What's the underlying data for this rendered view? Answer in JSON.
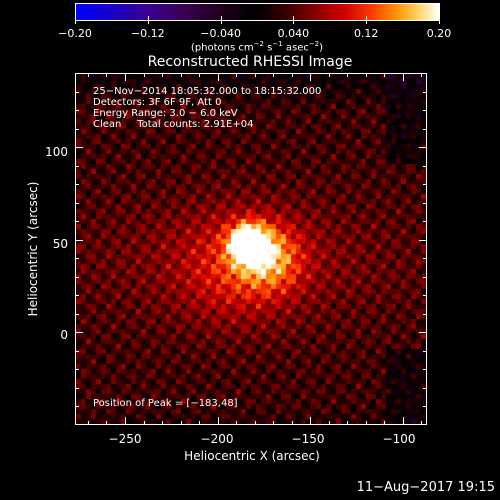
{
  "colorbar": {
    "tick_labels": [
      "−0.20",
      "−0.12",
      "−0.040",
      "0.040",
      "0.12",
      "0.20"
    ],
    "tick_values": [
      -0.2,
      -0.12,
      -0.04,
      0.04,
      0.12,
      0.2
    ],
    "range": [
      -0.2,
      0.2
    ],
    "units_prefix": "(photons cm",
    "units_exp1": "−2",
    "units_mid1": " s",
    "units_exp2": "−1",
    "units_mid2": " asec",
    "units_exp3": "−2",
    "units_suffix": ")"
  },
  "title": "Reconstructed RHESSI Image",
  "info": {
    "line1": "25−Nov−2014 18:05:32.000 to 18:15:32.000",
    "line2": "Detectors: 3F 6F 9F, Att 0",
    "line3": "Energy Range: 3.0 − 6.0 keV",
    "line4": "Clean     Total counts: 2.91E+04"
  },
  "peak_text": "Position of Peak = [−183,48]",
  "axes": {
    "xlabel": "Heliocentric X (arcsec)",
    "ylabel": "Heliocentric Y (arcsec)",
    "xlim": [
      -277,
      -87
    ],
    "ylim": [
      -50,
      140
    ],
    "xtick_labels": [
      "−250",
      "−200",
      "−150",
      "−100"
    ],
    "xtick_values": [
      -250,
      -200,
      -150,
      -100
    ],
    "ytick_labels": [
      "100",
      "50",
      "0"
    ],
    "ytick_values": [
      100,
      50,
      0
    ]
  },
  "timestamp": "11−Aug−2017 19:15",
  "chart_data": {
    "type": "heatmap",
    "title": "Reconstructed RHESSI Image",
    "xlabel": "Heliocentric X (arcsec)",
    "ylabel": "Heliocentric Y (arcsec)",
    "xlim": [
      -277,
      -87
    ],
    "ylim": [
      -50,
      140
    ],
    "colorbar_range": [
      -0.2,
      0.2
    ],
    "peak_position": [
      -183,
      48
    ],
    "sources": [
      {
        "x": -183,
        "y": 48,
        "intensity": 0.2,
        "sigma": 7
      },
      {
        "x": -172,
        "y": 40,
        "intensity": 0.09,
        "sigma": 12
      },
      {
        "x": -190,
        "y": 35,
        "intensity": 0.05,
        "sigma": 20
      }
    ],
    "background_level": 0.03,
    "ripple_amplitude": 0.035
  }
}
